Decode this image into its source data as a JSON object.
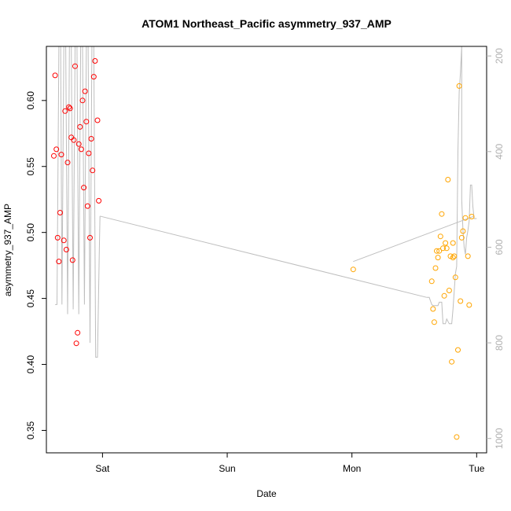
{
  "chart_data": {
    "type": "scatter",
    "title": "ATOM1 Northeast_Pacific asymmetry_937_AMP",
    "xlabel": "Date",
    "ylabel": "asymmetry_937_AMP",
    "x_ticks": [
      {
        "label": "Sat",
        "value": 1.0
      },
      {
        "label": "Sun",
        "value": 2.0
      },
      {
        "label": "Mon",
        "value": 3.0
      },
      {
        "label": "Tue",
        "value": 4.0
      }
    ],
    "xlim": [
      0.55,
      4.08
    ],
    "ylim": [
      0.333,
      0.641
    ],
    "y_ticks": [
      0.35,
      0.4,
      0.45,
      0.5,
      0.55,
      0.6
    ],
    "y2lim": [
      1030,
      180
    ],
    "y2_ticks": [
      200,
      400,
      600,
      800,
      1000
    ],
    "grid": false,
    "colors": {
      "series1": "#ff0000",
      "series2": "#ffa500",
      "line": "#bebebe"
    },
    "series": [
      {
        "color": "#ff0000",
        "points": [
          [
            0.61,
            0.558
          ],
          [
            0.62,
            0.619
          ],
          [
            0.63,
            0.563
          ],
          [
            0.64,
            0.496
          ],
          [
            0.65,
            0.478
          ],
          [
            0.66,
            0.515
          ],
          [
            0.67,
            0.559
          ],
          [
            0.69,
            0.494
          ],
          [
            0.7,
            0.592
          ],
          [
            0.71,
            0.487
          ],
          [
            0.72,
            0.553
          ],
          [
            0.73,
            0.595
          ],
          [
            0.74,
            0.594
          ],
          [
            0.75,
            0.572
          ],
          [
            0.76,
            0.479
          ],
          [
            0.77,
            0.57
          ],
          [
            0.78,
            0.626
          ],
          [
            0.79,
            0.416
          ],
          [
            0.8,
            0.424
          ],
          [
            0.81,
            0.567
          ],
          [
            0.82,
            0.58
          ],
          [
            0.83,
            0.563
          ],
          [
            0.84,
            0.6
          ],
          [
            0.85,
            0.534
          ],
          [
            0.86,
            0.607
          ],
          [
            0.87,
            0.584
          ],
          [
            0.88,
            0.52
          ],
          [
            0.89,
            0.56
          ],
          [
            0.9,
            0.496
          ],
          [
            0.91,
            0.571
          ],
          [
            0.92,
            0.547
          ],
          [
            0.93,
            0.618
          ],
          [
            0.94,
            0.63
          ],
          [
            0.96,
            0.585
          ],
          [
            0.97,
            0.524
          ]
        ]
      },
      {
        "color": "#ffa500",
        "points": [
          [
            3.01,
            0.472
          ],
          [
            3.64,
            0.463
          ],
          [
            3.65,
            0.442
          ],
          [
            3.66,
            0.432
          ],
          [
            3.67,
            0.473
          ],
          [
            3.68,
            0.486
          ],
          [
            3.69,
            0.481
          ],
          [
            3.7,
            0.486
          ],
          [
            3.71,
            0.497
          ],
          [
            3.72,
            0.514
          ],
          [
            3.73,
            0.488
          ],
          [
            3.74,
            0.452
          ],
          [
            3.75,
            0.492
          ],
          [
            3.76,
            0.488
          ],
          [
            3.77,
            0.54
          ],
          [
            3.78,
            0.456
          ],
          [
            3.79,
            0.482
          ],
          [
            3.8,
            0.402
          ],
          [
            3.81,
            0.481
          ],
          [
            3.81,
            0.492
          ],
          [
            3.82,
            0.482
          ],
          [
            3.83,
            0.466
          ],
          [
            3.84,
            0.345
          ],
          [
            3.85,
            0.411
          ],
          [
            3.86,
            0.611
          ],
          [
            3.87,
            0.448
          ],
          [
            3.88,
            0.496
          ],
          [
            3.89,
            0.501
          ],
          [
            3.91,
            0.511
          ],
          [
            3.93,
            0.482
          ],
          [
            3.94,
            0.445
          ],
          [
            3.96,
            0.512
          ]
        ]
      }
    ],
    "line_series": {
      "color": "#bebebe",
      "axis": "right",
      "points": [
        [
          0.62,
          720
        ],
        [
          0.635,
          720
        ],
        [
          0.65,
          180
        ],
        [
          0.665,
          180
        ],
        [
          0.675,
          720
        ],
        [
          0.69,
          180
        ],
        [
          0.705,
          180
        ],
        [
          0.72,
          740
        ],
        [
          0.735,
          180
        ],
        [
          0.75,
          180
        ],
        [
          0.765,
          730
        ],
        [
          0.78,
          180
        ],
        [
          0.795,
          180
        ],
        [
          0.81,
          740
        ],
        [
          0.825,
          180
        ],
        [
          0.84,
          180
        ],
        [
          0.855,
          720
        ],
        [
          0.87,
          180
        ],
        [
          0.885,
          180
        ],
        [
          0.9,
          800
        ],
        [
          0.915,
          180
        ],
        [
          0.93,
          180
        ],
        [
          0.945,
          830
        ],
        [
          0.96,
          830
        ],
        [
          0.975,
          600
        ],
        [
          0.98,
          535
        ],
        [
          3.6,
          705
        ],
        [
          3.62,
          705
        ],
        [
          3.64,
          720
        ],
        [
          3.65,
          722
        ],
        [
          3.69,
          722
        ],
        [
          3.7,
          715
        ],
        [
          3.72,
          715
        ],
        [
          3.73,
          760
        ],
        [
          3.75,
          760
        ],
        [
          3.76,
          750
        ],
        [
          3.78,
          760
        ],
        [
          3.8,
          760
        ],
        [
          3.81,
          730
        ],
        [
          3.83,
          655
        ],
        [
          3.84,
          640
        ],
        [
          3.85,
          400
        ],
        [
          3.86,
          275
        ],
        [
          3.87,
          235
        ],
        [
          3.88,
          180
        ],
        [
          3.88,
          500
        ],
        [
          3.89,
          565
        ],
        [
          3.9,
          600
        ],
        [
          3.91,
          615
        ],
        [
          3.92,
          580
        ],
        [
          3.93,
          565
        ],
        [
          3.94,
          545
        ],
        [
          3.95,
          470
        ],
        [
          3.96,
          470
        ],
        [
          3.97,
          515
        ],
        [
          3.98,
          540
        ],
        [
          3.99,
          540
        ],
        [
          4.0,
          540
        ],
        [
          4.02,
          500
        ],
        [
          3.01,
          630
        ],
        [
          3.06,
          600
        ],
        [
          3.98,
          535
        ]
      ],
      "segments": [
        [
          [
            0.98,
            535
          ],
          [
            3.6,
            705
          ]
        ],
        [
          [
            3.01,
            630
          ],
          [
            3.98,
            535
          ]
        ]
      ]
    }
  }
}
